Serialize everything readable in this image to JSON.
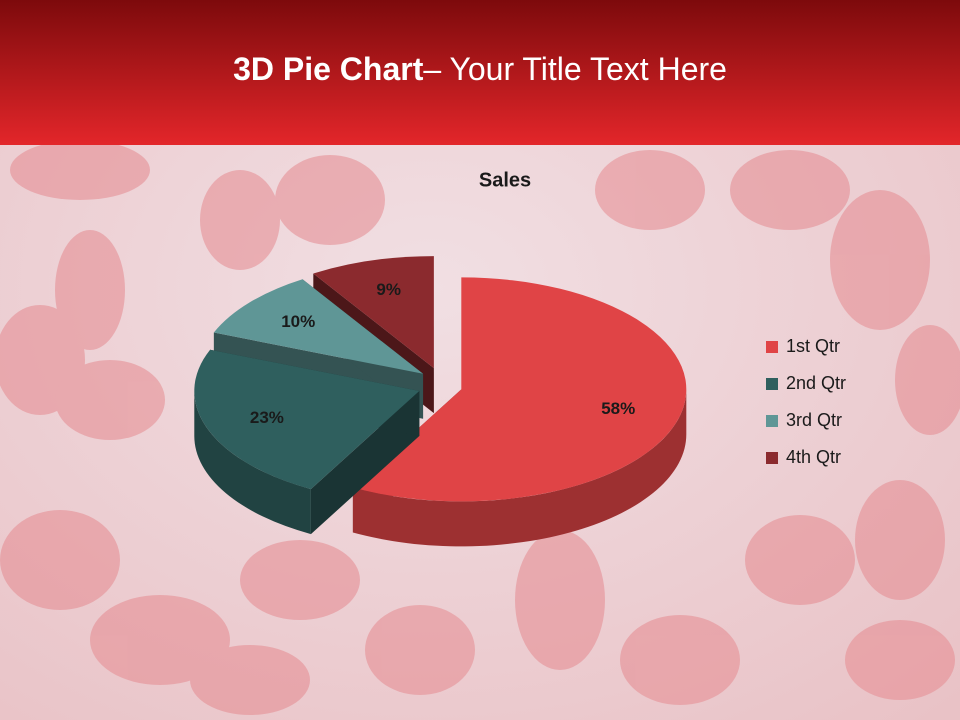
{
  "slide_title": {
    "bold": "3D Pie Chart",
    "rest": "– Your Title Text Here"
  },
  "chart_data": {
    "type": "pie",
    "title": "Sales",
    "categories": [
      "1st Qtr",
      "2nd Qtr",
      "3rd Qtr",
      "4th Qtr"
    ],
    "values": [
      58,
      23,
      10,
      9
    ],
    "value_labels": [
      "58%",
      "23%",
      "10%",
      "9%"
    ],
    "colors": [
      "#e04446",
      "#2f5f5e",
      "#5f9696",
      "#8b2a2e"
    ],
    "legend": "right"
  }
}
